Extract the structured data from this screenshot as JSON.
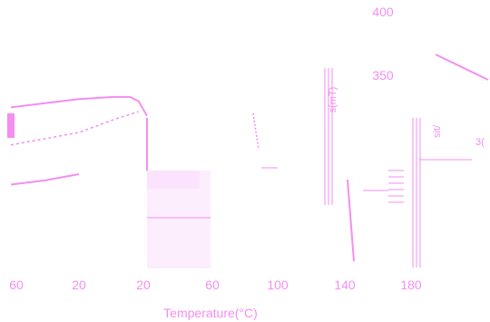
{
  "chart_data": {
    "type": "line",
    "x_ticks": [
      "60",
      "20",
      "20",
      "60",
      "100",
      "140",
      "180"
    ],
    "y_ticks_right": [
      "400",
      "350"
    ],
    "xlabel": "Temperature(°C)",
    "ylabel_fragment": "s(mT)",
    "ylabel_fragment2": "sit/",
    "right_fragment": "3(",
    "series": [
      {
        "x": [
          -60,
          -40,
          -20,
          0,
          10,
          15,
          20
        ],
        "y": [
          52,
          54,
          56,
          57,
          57,
          55,
          48
        ]
      },
      {
        "x": [
          -60,
          -20,
          0,
          15
        ],
        "y": [
          34,
          40,
          46,
          50
        ]
      },
      {
        "x": [
          -60,
          -40,
          -20
        ],
        "y": [
          15,
          17,
          20
        ]
      }
    ],
    "colors": {
      "accent": "#f58ef0",
      "fill": "#fdeefe"
    }
  }
}
